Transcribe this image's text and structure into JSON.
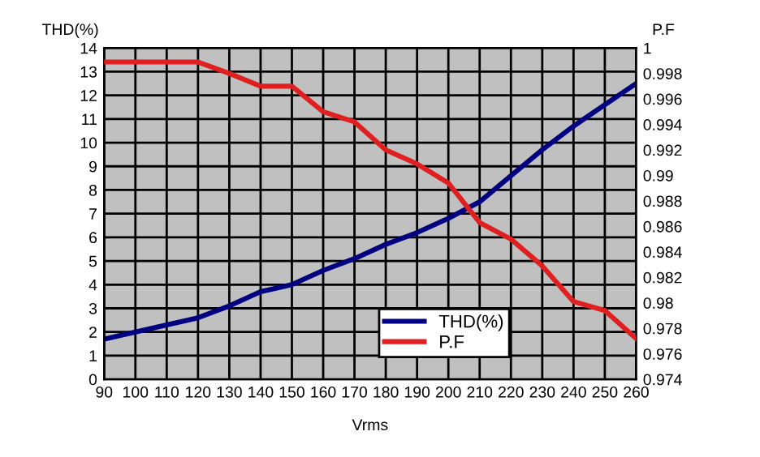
{
  "chart_data": {
    "type": "line",
    "xlabel": "Vrms",
    "ylabel": "THD(%)",
    "y2label": "P.F",
    "x": [
      90,
      100,
      110,
      120,
      130,
      140,
      150,
      160,
      170,
      180,
      190,
      200,
      210,
      220,
      230,
      240,
      250,
      260
    ],
    "series": [
      {
        "name": "THD(%)",
        "color": "#000080",
        "values": [
          1.7,
          2.0,
          2.3,
          2.6,
          3.1,
          3.7,
          4.0,
          4.6,
          5.1,
          5.7,
          6.2,
          6.8,
          7.5,
          8.6,
          9.7,
          10.7,
          11.6,
          12.5
        ]
      },
      {
        "name": "P.F",
        "color": "#e02020",
        "axis": "y2",
        "values": [
          0.9989,
          0.9989,
          0.9989,
          0.9989,
          0.998,
          0.997,
          0.997,
          0.995,
          0.9942,
          0.992,
          0.9909,
          0.9894,
          0.9863,
          0.985,
          0.9829,
          0.9801,
          0.9794,
          0.9772
        ]
      }
    ],
    "xlim": [
      90,
      260
    ],
    "xticks": [
      90,
      100,
      110,
      120,
      130,
      140,
      150,
      160,
      170,
      180,
      190,
      200,
      210,
      220,
      230,
      240,
      250,
      260
    ],
    "ylim": [
      0,
      14
    ],
    "yticks": [
      0,
      1,
      2,
      3,
      4,
      5,
      6,
      7,
      8,
      9,
      10,
      11,
      12,
      13,
      14
    ],
    "y2lim": [
      0.974,
      1
    ],
    "y2ticks": [
      0.974,
      0.976,
      0.978,
      0.98,
      0.982,
      0.984,
      0.986,
      0.988,
      0.99,
      0.992,
      0.994,
      0.996,
      0.998,
      1
    ],
    "grid": true,
    "legend": "bottom right",
    "marker": "none",
    "line_style": "solid"
  }
}
